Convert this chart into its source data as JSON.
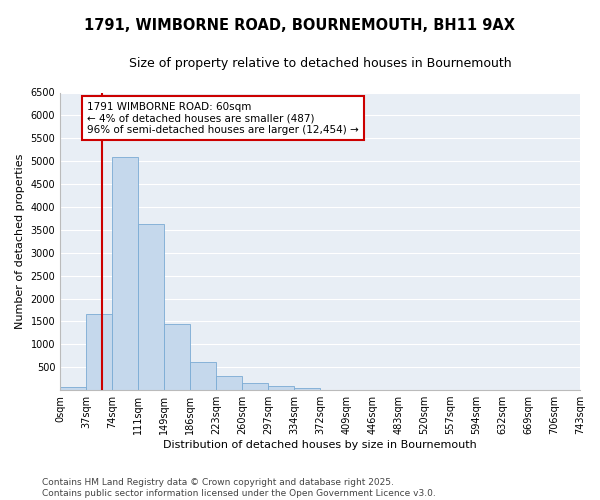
{
  "title_line1": "1791, WIMBORNE ROAD, BOURNEMOUTH, BH11 9AX",
  "title_line2": "Size of property relative to detached houses in Bournemouth",
  "xlabel": "Distribution of detached houses by size in Bournemouth",
  "ylabel": "Number of detached properties",
  "footer_line1": "Contains HM Land Registry data © Crown copyright and database right 2025.",
  "footer_line2": "Contains public sector information licensed under the Open Government Licence v3.0.",
  "bins": [
    0,
    37,
    74,
    111,
    149,
    186,
    223,
    260,
    297,
    334,
    372,
    409,
    446,
    483,
    520,
    557,
    594,
    632,
    669,
    706,
    743
  ],
  "bin_labels": [
    "0sqm",
    "37sqm",
    "74sqm",
    "111sqm",
    "149sqm",
    "186sqm",
    "223sqm",
    "260sqm",
    "297sqm",
    "334sqm",
    "372sqm",
    "409sqm",
    "446sqm",
    "483sqm",
    "520sqm",
    "557sqm",
    "594sqm",
    "632sqm",
    "669sqm",
    "706sqm",
    "743sqm"
  ],
  "counts": [
    60,
    1670,
    5100,
    3620,
    1440,
    620,
    310,
    160,
    80,
    35,
    10,
    0,
    0,
    0,
    0,
    0,
    0,
    0,
    0,
    0
  ],
  "bar_color": "#c5d8ec",
  "bar_edge_color": "#7aabd4",
  "property_size": 60,
  "vline_color": "#cc0000",
  "annotation_text": "1791 WIMBORNE ROAD: 60sqm\n← 4% of detached houses are smaller (487)\n96% of semi-detached houses are larger (12,454) →",
  "annotation_box_color": "white",
  "annotation_box_edge": "#cc0000",
  "ylim": [
    0,
    6500
  ],
  "yticks": [
    0,
    500,
    1000,
    1500,
    2000,
    2500,
    3000,
    3500,
    4000,
    4500,
    5000,
    5500,
    6000,
    6500
  ],
  "plot_bg_color": "#e8eef5",
  "fig_bg_color": "#ffffff",
  "grid_color": "#ffffff",
  "title_fontsize": 10.5,
  "subtitle_fontsize": 9,
  "axis_label_fontsize": 8,
  "tick_fontsize": 7,
  "footer_fontsize": 6.5,
  "annotation_fontsize": 7.5
}
